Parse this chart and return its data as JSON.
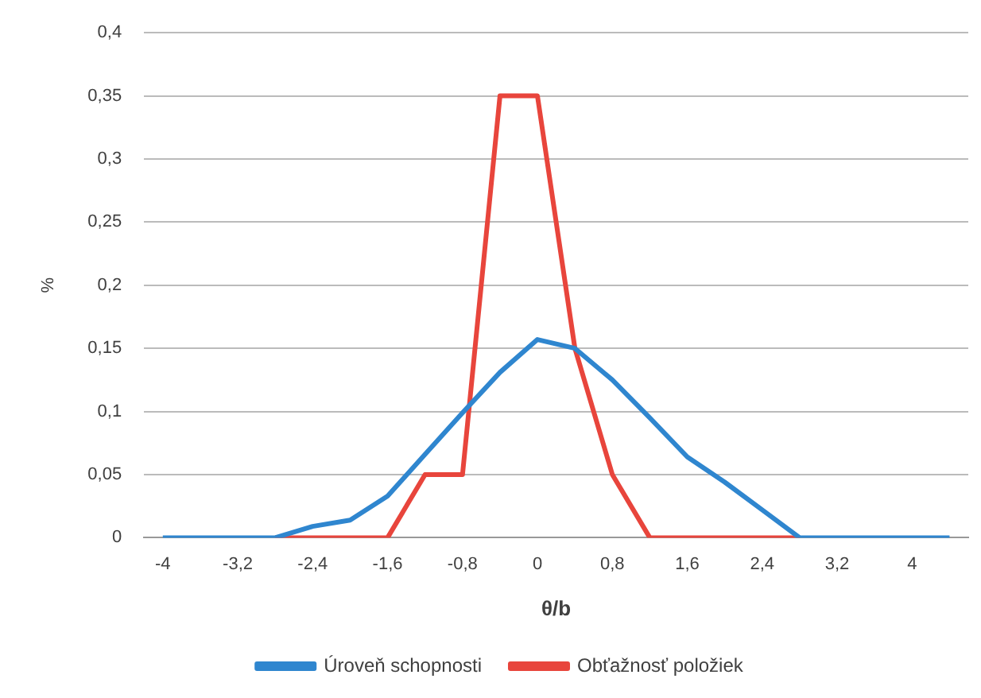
{
  "chart_data": {
    "type": "line",
    "xlabel": "θ/b",
    "ylabel": "%",
    "categories": [
      "-4",
      null,
      "-3,2",
      null,
      "-2,4",
      null,
      "-1,6",
      null,
      "-0,8",
      null,
      "0",
      null,
      "0,8",
      null,
      "1,6",
      null,
      "2,4",
      null,
      "3,2",
      null,
      "4",
      null
    ],
    "series": [
      {
        "name": "Obťažnosť položiek",
        "color": "#e8453c",
        "values": [
          null,
          null,
          null,
          0,
          0,
          0,
          0,
          0.05,
          0.05,
          0.35,
          0.35,
          0.15,
          0.05,
          0,
          0,
          0,
          0,
          0,
          null,
          null,
          null,
          null
        ]
      },
      {
        "name": "Úroveň schopnosti",
        "color": "#2f86cf",
        "values": [
          0,
          0,
          0,
          0,
          0.009,
          0.014,
          0.033,
          0.066,
          0.099,
          0.131,
          0.157,
          0.15,
          0.125,
          0.095,
          0.064,
          0.044,
          0.022,
          0,
          0,
          0,
          0,
          0
        ]
      }
    ],
    "ylim": [
      0,
      0.4
    ],
    "yticks": [
      0,
      {
        "value": 0.05,
        "label": "0,05"
      },
      {
        "value": 0.1,
        "label": "0,1"
      },
      {
        "value": 0.15,
        "label": "0,15"
      },
      {
        "value": 0.2,
        "label": "0,2"
      },
      {
        "value": 0.25,
        "label": "0,25"
      },
      {
        "value": 0.3,
        "label": "0,3"
      },
      {
        "value": 0.35,
        "label": "0,35"
      },
      {
        "value": 0.4,
        "label": "0,4"
      }
    ],
    "grid": "y",
    "legend": "bottom",
    "marker": "none",
    "line_style": "solid"
  }
}
